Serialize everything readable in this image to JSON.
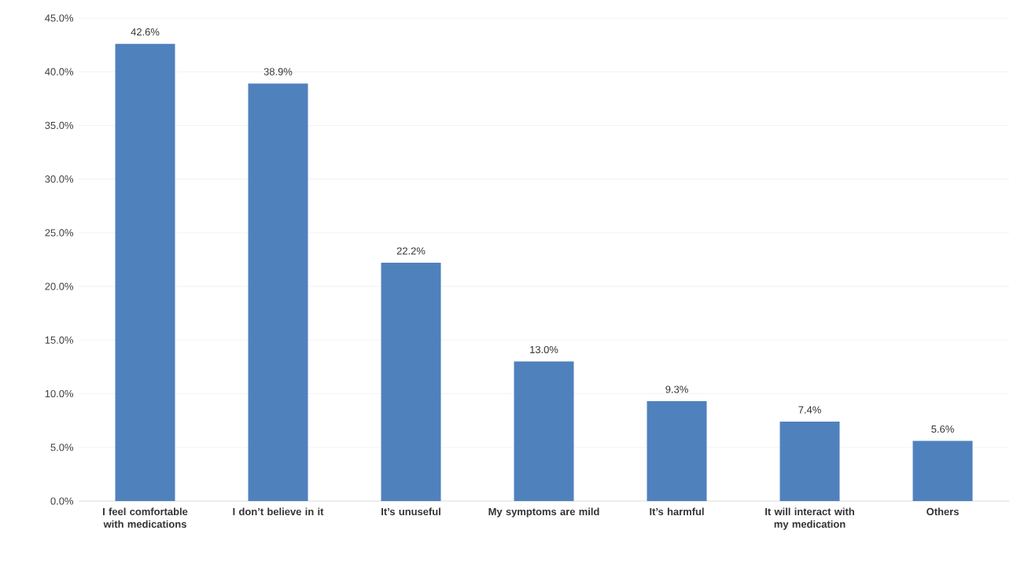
{
  "chart_data": {
    "type": "bar",
    "categories": [
      "I feel comfortable with medications",
      "I don’t believe in it",
      "It’s unuseful",
      "My symptoms are mild",
      "It’s harmful",
      "It will interact with my medication",
      "Others"
    ],
    "values": [
      42.6,
      38.9,
      22.2,
      13.0,
      9.3,
      7.4,
      5.6
    ],
    "value_labels": [
      "42.6%",
      "38.9%",
      "22.2%",
      "13.0%",
      "9.3%",
      "7.4%",
      "5.6%"
    ],
    "color": "#4f81bd",
    "ylim": [
      0,
      45
    ],
    "yticks": [
      {
        "value": 0,
        "label": "0.0%"
      },
      {
        "value": 5,
        "label": "5.0%"
      },
      {
        "value": 10,
        "label": "10.0%"
      },
      {
        "value": 15,
        "label": "15.0%"
      },
      {
        "value": 20,
        "label": "20.0%"
      },
      {
        "value": 25,
        "label": "25.0%"
      },
      {
        "value": 30,
        "label": "30.0%"
      },
      {
        "value": 35,
        "label": "35.0%"
      },
      {
        "value": 40,
        "label": "40.0%"
      },
      {
        "value": 45,
        "label": "45.0%"
      }
    ],
    "grid": "y"
  }
}
